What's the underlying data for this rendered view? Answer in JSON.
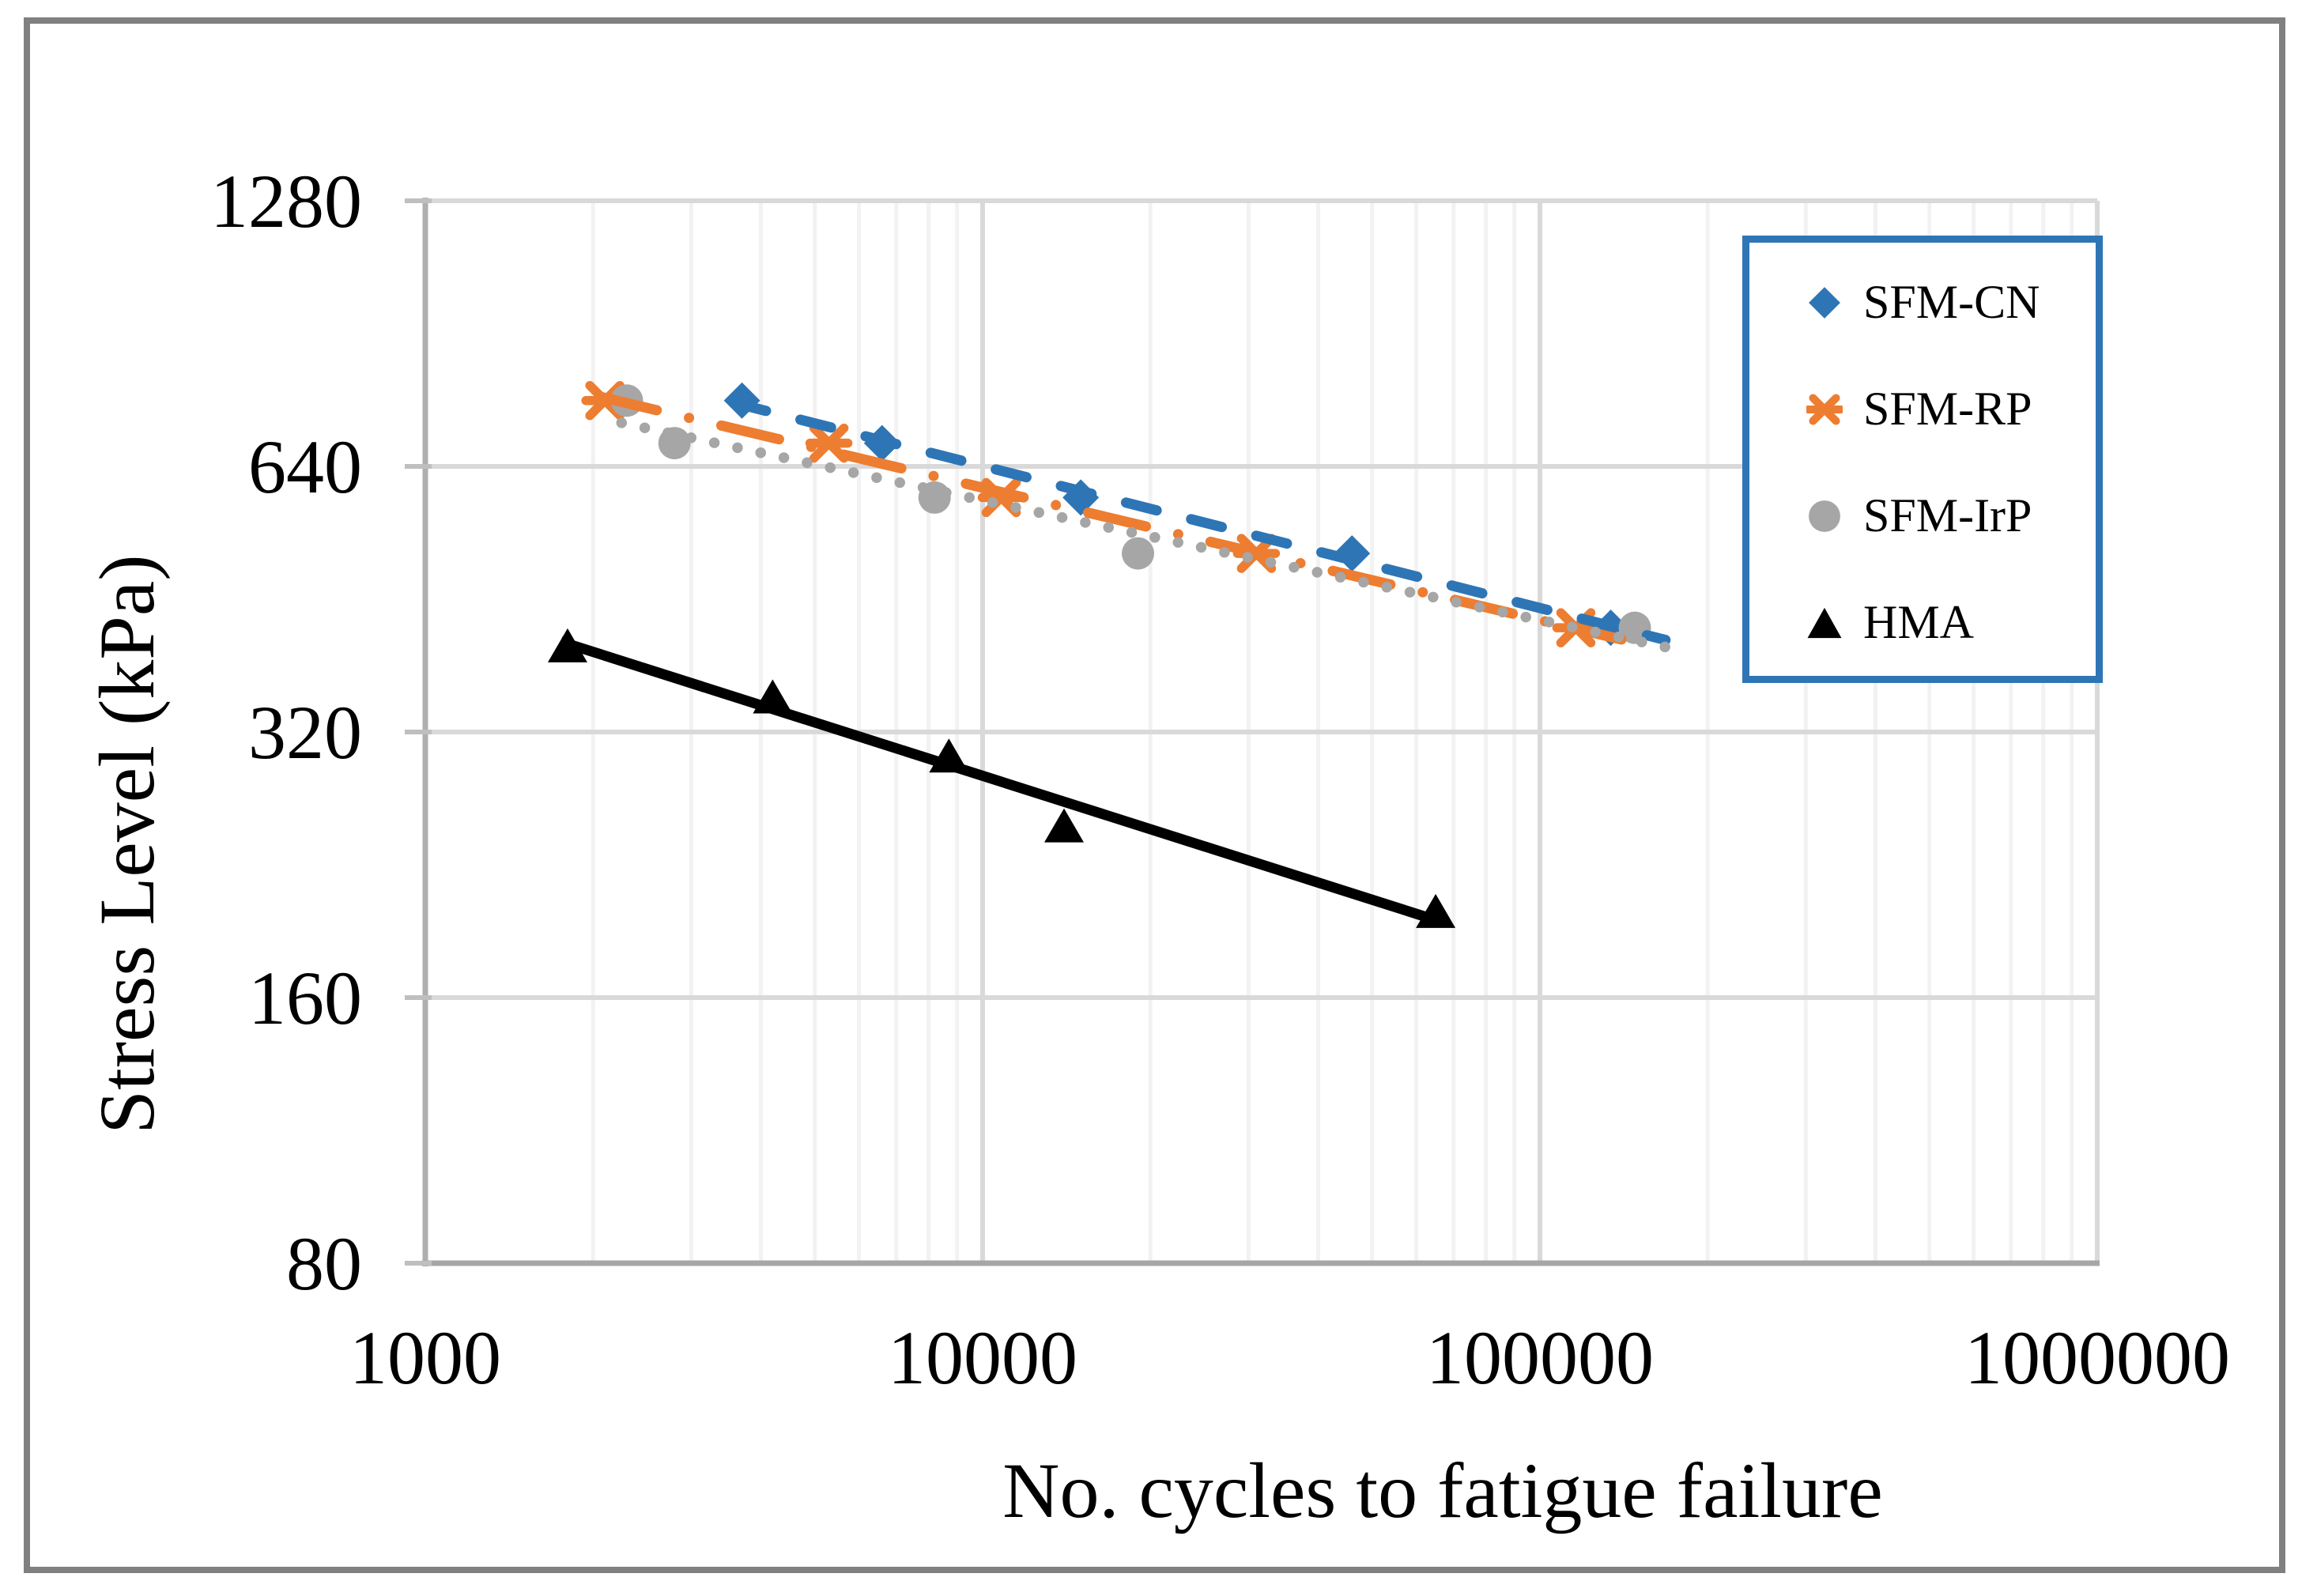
{
  "colors": {
    "outer_border": "#808080",
    "legend_border": "#2E75B6",
    "grid_major": "#D9D9D9",
    "grid_minor": "#F2F2F2",
    "axis_line": "#AFAFAF",
    "bottom_axis_line": "#A6A6A6",
    "tick_mark": "#BFBFBF",
    "text": "#000000"
  },
  "chart_data": {
    "type": "scatter",
    "title": "",
    "xlabel": "No. cycles to fatigue failure",
    "ylabel": "Stress Level (kPa)",
    "x_scale": "log10",
    "y_scale": "log2",
    "xlim": [
      1000,
      1000000
    ],
    "ylim": [
      80,
      1280
    ],
    "x_ticks": [
      1000,
      10000,
      100000,
      1000000
    ],
    "x_tick_labels": [
      "1000",
      "10000",
      "100000",
      "1000000"
    ],
    "y_ticks": [
      1280,
      640,
      320,
      160,
      80
    ],
    "y_tick_labels": [
      "1280",
      "640",
      "320",
      "160",
      "80"
    ],
    "grid": "on",
    "legend_position": "top-right-inside",
    "series": [
      {
        "name": "SFM-CN",
        "color": "#2E75B6",
        "marker": "diamond",
        "line_style": "dashed",
        "points": [
          [
            3700,
            760
          ],
          [
            6600,
            680
          ],
          [
            15000,
            590
          ],
          [
            46000,
            510
          ],
          [
            134000,
            420
          ]
        ],
        "trend_range": [
          3600,
          168000
        ]
      },
      {
        "name": "SFM-RP",
        "color": "#ED7D31",
        "marker": "asterisk",
        "line_style": "dashdot",
        "points": [
          [
            2100,
            760
          ],
          [
            5300,
            680
          ],
          [
            10800,
            590
          ],
          [
            31000,
            510
          ],
          [
            116000,
            420
          ]
        ],
        "trend_range": [
          2050,
          140000
        ]
      },
      {
        "name": "SFM-IrP",
        "color": "#A6A6A6",
        "marker": "circle",
        "line_style": "dotted",
        "points": [
          [
            2300,
            760
          ],
          [
            2800,
            680
          ],
          [
            8200,
            590
          ],
          [
            19000,
            510
          ],
          [
            148000,
            420
          ]
        ],
        "trend_range": [
          2250,
          175000
        ]
      },
      {
        "name": "HMA",
        "color": "#000000",
        "marker": "triangle",
        "line_style": "solid",
        "points": [
          [
            1800,
            400
          ],
          [
            4200,
            350
          ],
          [
            8700,
            300
          ],
          [
            14000,
            250
          ],
          [
            65000,
            200
          ]
        ],
        "trend_range": [
          1750,
          66000
        ]
      }
    ]
  }
}
